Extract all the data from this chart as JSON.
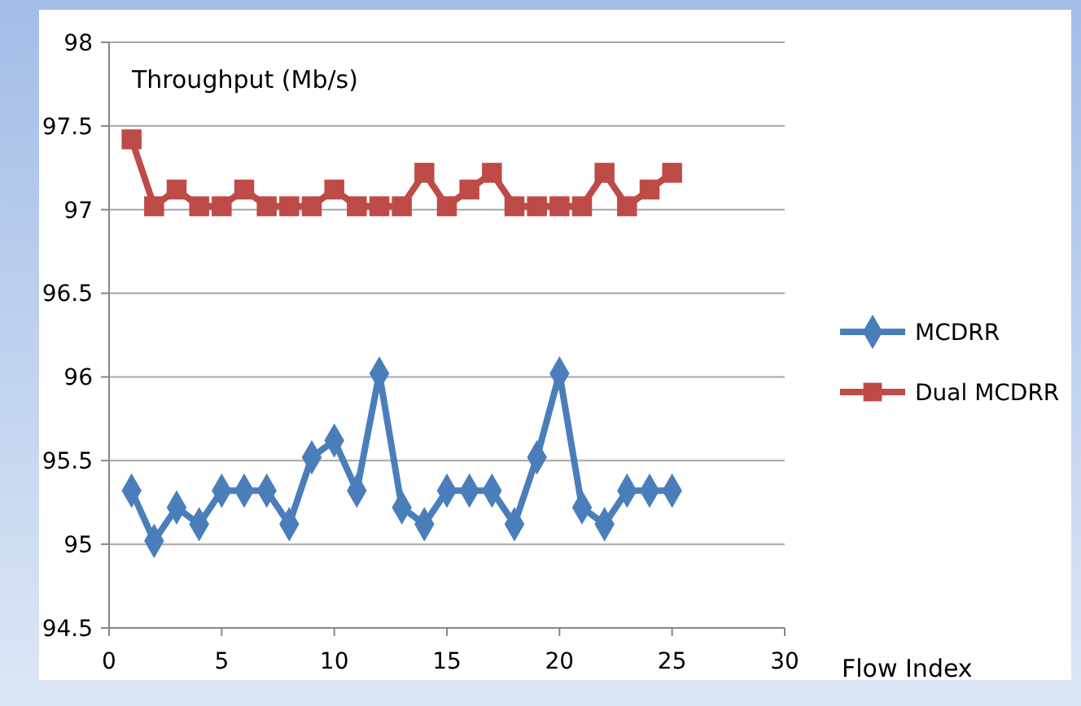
{
  "chart_data": {
    "type": "line",
    "ylabel": "Throughput (Mb/s)",
    "xlabel": "Flow Index",
    "x": [
      1,
      2,
      3,
      4,
      5,
      6,
      7,
      8,
      9,
      10,
      11,
      12,
      13,
      14,
      15,
      16,
      17,
      18,
      19,
      20,
      21,
      22,
      23,
      24,
      25
    ],
    "series": [
      {
        "name": "MCDRR",
        "color": "#4a7ebb",
        "marker": "diamond",
        "values": [
          95.32,
          95.02,
          95.22,
          95.12,
          95.32,
          95.32,
          95.32,
          95.12,
          95.52,
          95.62,
          95.32,
          96.02,
          95.22,
          95.12,
          95.32,
          95.32,
          95.32,
          95.12,
          95.52,
          96.02,
          95.22,
          95.12,
          95.32,
          95.32,
          95.32
        ]
      },
      {
        "name": "Dual MCDRR",
        "color": "#be4b48",
        "marker": "square",
        "values": [
          97.42,
          97.02,
          97.12,
          97.02,
          97.02,
          97.12,
          97.02,
          97.02,
          97.02,
          97.12,
          97.02,
          97.02,
          97.02,
          97.22,
          97.02,
          97.12,
          97.22,
          97.02,
          97.02,
          97.02,
          97.02,
          97.22,
          97.02,
          97.12,
          97.22
        ]
      }
    ],
    "xlim": [
      0,
      30
    ],
    "xticks": [
      0,
      5,
      10,
      15,
      20,
      25,
      30
    ],
    "ylim": [
      94.5,
      98
    ],
    "yticks": [
      94.5,
      95,
      95.5,
      96,
      96.5,
      97,
      97.5,
      98
    ],
    "grid": "y",
    "legend": "right",
    "line_style": "solid"
  }
}
